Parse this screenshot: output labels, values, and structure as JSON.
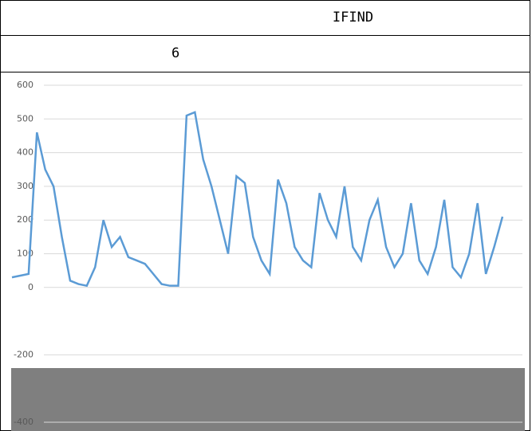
{
  "header": {
    "title": "IFIND"
  },
  "row": {
    "text": "6"
  },
  "chart_data": {
    "type": "line",
    "series": [
      {
        "color": "#5b9bd5",
        "values": [
          30,
          35,
          40,
          460,
          350,
          300,
          150,
          20,
          10,
          5,
          60,
          200,
          120,
          150,
          90,
          80,
          70,
          40,
          10,
          5,
          5,
          510,
          520,
          380,
          300,
          200,
          100,
          330,
          310,
          150,
          80,
          40,
          320,
          250,
          120,
          80,
          60,
          280,
          200,
          150,
          300,
          120,
          80,
          200,
          260,
          120,
          60,
          100,
          250,
          80,
          40,
          120,
          260,
          60,
          30,
          100,
          250,
          40,
          120,
          210
        ]
      }
    ],
    "ylim": [
      -400,
      600
    ],
    "yticks": [
      -400,
      -200,
      0,
      100,
      200,
      300,
      400,
      500,
      600
    ],
    "grid": true
  }
}
